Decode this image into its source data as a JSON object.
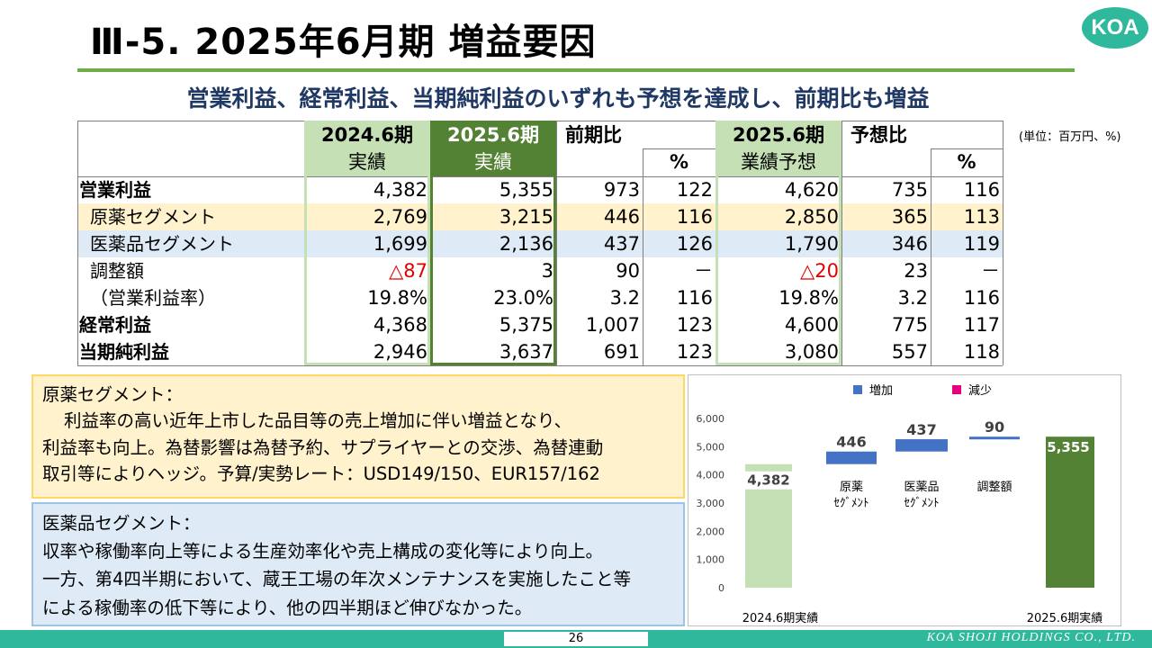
{
  "header": {
    "title": "Ⅲ-5. 2025年6月期 増益要因",
    "logo": "KOA",
    "subtitle": "営業利益、経常利益、当期純利益のいずれも予想を達成し、前期比も増益",
    "unit": "(単位：百万円、%)"
  },
  "table": {
    "head1": [
      "",
      "2024.6期",
      "2025.6期",
      "前期比",
      "",
      "2025.6期",
      "予想比",
      ""
    ],
    "head2": [
      "",
      "実績",
      "実績",
      "",
      "%",
      "業績予想",
      "",
      "%"
    ],
    "rows": [
      {
        "label": "営業利益",
        "bold": true,
        "cells": [
          "4,382",
          "5,355",
          "973",
          "122",
          "4,620",
          "735",
          "116"
        ]
      },
      {
        "label": "原薬セグメント",
        "bold": false,
        "cells": [
          "2,769",
          "3,215",
          "446",
          "116",
          "2,850",
          "365",
          "113"
        ]
      },
      {
        "label": "医薬品セグメント",
        "bold": false,
        "cells": [
          "1,699",
          "2,136",
          "437",
          "126",
          "1,790",
          "346",
          "119"
        ]
      },
      {
        "label": "調整額",
        "bold": false,
        "cells": [
          "△87",
          "3",
          "90",
          "－",
          "△20",
          "23",
          "－"
        ]
      },
      {
        "label": "（営業利益率）",
        "bold": false,
        "cells": [
          "19.8%",
          "23.0%",
          "3.2",
          "116",
          "19.8%",
          "3.2",
          "116"
        ]
      },
      {
        "label": "経常利益",
        "bold": true,
        "cells": [
          "4,368",
          "5,375",
          "1,007",
          "123",
          "4,600",
          "775",
          "117"
        ]
      },
      {
        "label": "当期純利益",
        "bold": true,
        "cells": [
          "2,946",
          "3,637",
          "691",
          "123",
          "3,080",
          "557",
          "118"
        ]
      }
    ],
    "colors": {
      "seg1_row": "#fff2cc",
      "seg2_row": "#deebf7",
      "negative": "#e00000"
    }
  },
  "notes": {
    "api_title": "原薬セグメント：",
    "api_lines": [
      "利益率の高い近年上市した品目等の売上増加に伴い増益となり、",
      "利益率も向上。為替影響は為替予約、サプライヤーとの交渉、為替連動",
      "取引等によりヘッジ。予算/実勢レート：USD149/150、EUR157/162"
    ],
    "drug_title": "医薬品セグメント：",
    "drug_lines": [
      "収率や稼働率向上等による生産効率化や売上構成の変化等により向上。",
      "一方、第4四半期において、蔵王工場の年次メンテナンスを実施したこと等",
      "による稼働率の低下等により、他の四半期ほど伸びなかった。"
    ]
  },
  "chart_data": {
    "type": "bar",
    "legend": [
      "増加",
      "減少"
    ],
    "legend_colors": [
      "#4472c4",
      "#e6007e"
    ],
    "ylim": [
      0,
      6000
    ],
    "yticks": [
      "0",
      "1,000",
      "2,000",
      "3,000",
      "4,000",
      "5,000",
      "6,000"
    ],
    "bars": [
      {
        "label": "2024.6期実績",
        "kind": "total",
        "base": 0,
        "value": 4382,
        "value_label": "4,382",
        "color": "#c5e0b4"
      },
      {
        "label": "原薬\nｾｸﾞﾒﾝﾄ",
        "kind": "increase",
        "base": 4382,
        "value": 446,
        "value_label": "446",
        "color": "#4472c4"
      },
      {
        "label": "医薬品\nｾｸﾞﾒﾝﾄ",
        "kind": "increase",
        "base": 4828,
        "value": 437,
        "value_label": "437",
        "color": "#4472c4"
      },
      {
        "label": "調整額",
        "kind": "increase",
        "base": 5265,
        "value": 90,
        "value_label": "90",
        "color": "#4472c4"
      },
      {
        "label": "2025.6期実績",
        "kind": "total",
        "base": 0,
        "value": 5355,
        "value_label": "5,355",
        "color": "#548235"
      }
    ]
  },
  "footer": {
    "page": "26",
    "company": "KOA SHOJI HOLDINGS CO., LTD."
  }
}
